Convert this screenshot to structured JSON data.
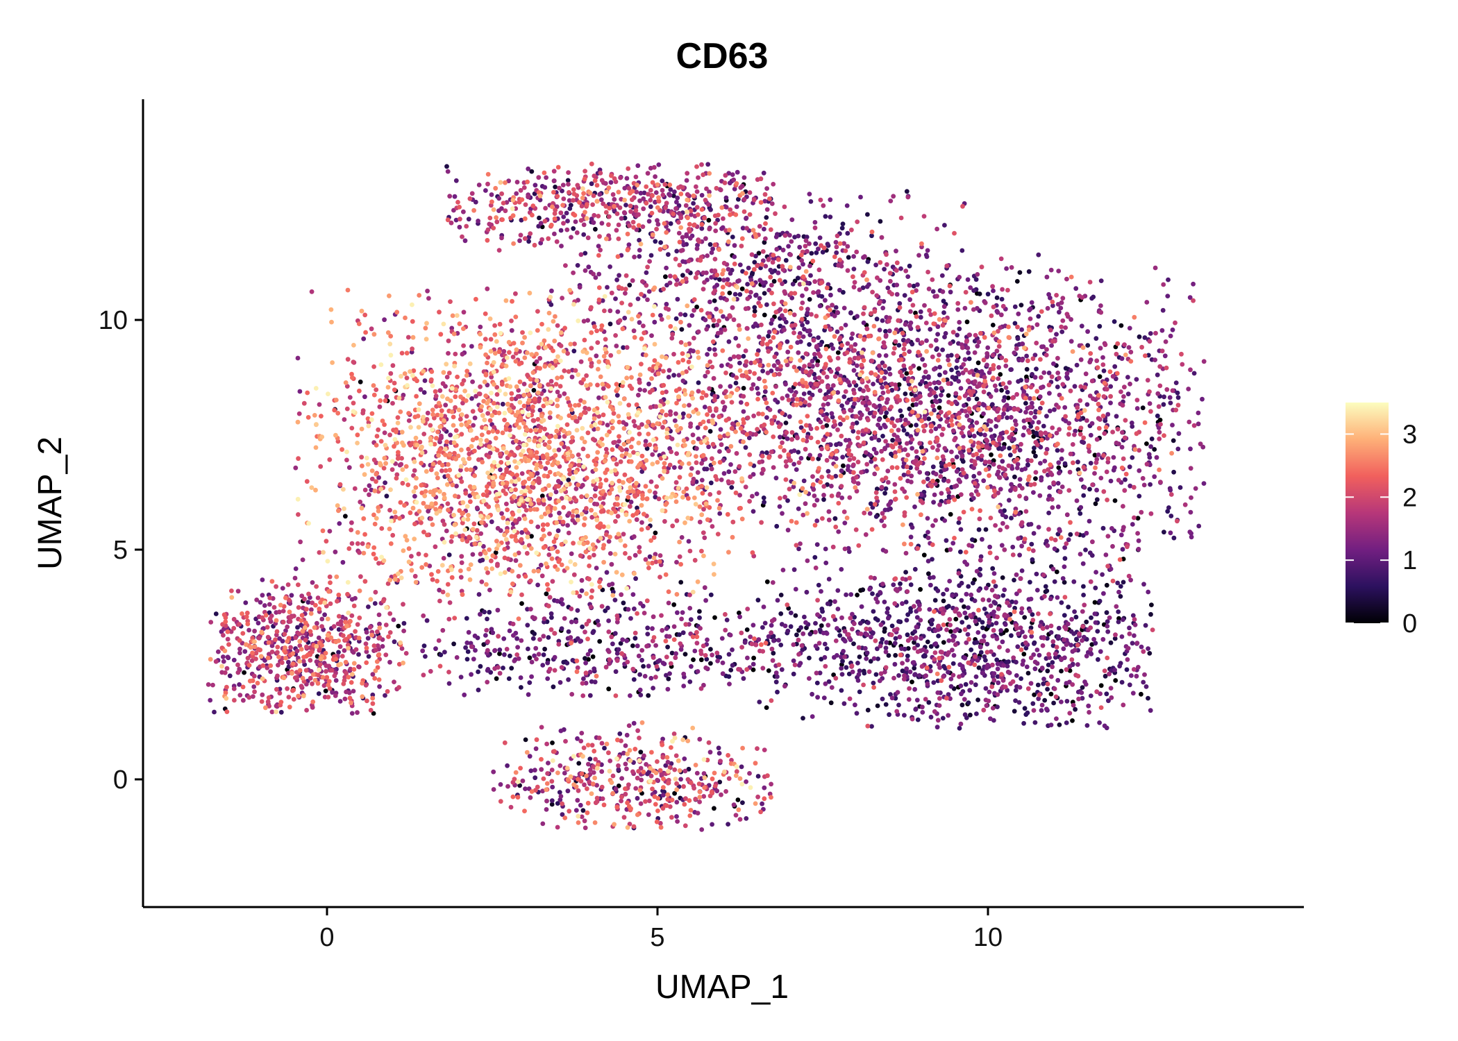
{
  "chart_data": {
    "type": "scatter",
    "title": "CD63",
    "xlabel": "UMAP_1",
    "ylabel": "UMAP_2",
    "xlim": [
      -2.8,
      14.8
    ],
    "ylim": [
      -2.8,
      14.8
    ],
    "x_ticks": [
      0,
      5,
      10
    ],
    "x_tick_labels": [
      "0",
      "5",
      "10"
    ],
    "y_ticks": [
      0,
      5,
      10
    ],
    "y_tick_labels": [
      "0",
      "5",
      "10"
    ],
    "grid": false,
    "color_scale": {
      "name": "magma",
      "min": 0,
      "max": 3.5,
      "ticks": [
        0,
        1,
        2,
        3
      ],
      "tick_labels": [
        "0",
        "1",
        "2",
        "3"
      ],
      "stops": [
        "#000004",
        "#2c115f",
        "#721f81",
        "#b73779",
        "#f1605d",
        "#feb078",
        "#fcfdbf"
      ]
    },
    "legend_position": "right",
    "clusters": [
      {
        "name": "left-lobe",
        "cx": 3.0,
        "cy": 7.0,
        "sx": 1.6,
        "sy": 1.7,
        "n": 2200,
        "mean": 2.3,
        "sd": 0.6,
        "xmin": -0.5,
        "xmax": 6.5,
        "ymin": 4.0,
        "ymax": 10.8
      },
      {
        "name": "upper-arc",
        "cx": 4.2,
        "cy": 12.6,
        "sx": 1.6,
        "sy": 0.5,
        "n": 500,
        "mean": 1.7,
        "sd": 0.6,
        "xmin": 1.8,
        "xmax": 6.8,
        "ymin": 11.5,
        "ymax": 13.4
      },
      {
        "name": "top-middle",
        "cx": 6.5,
        "cy": 11.2,
        "sx": 1.6,
        "sy": 0.9,
        "n": 500,
        "mean": 1.4,
        "sd": 0.6,
        "xmin": 3.0,
        "xmax": 10.0,
        "ymin": 9.5,
        "ymax": 12.8
      },
      {
        "name": "center",
        "cx": 7.4,
        "cy": 8.3,
        "sx": 1.6,
        "sy": 1.6,
        "n": 1200,
        "mean": 1.6,
        "sd": 0.6,
        "xmin": 4.0,
        "xmax": 11.0,
        "ymin": 5.0,
        "ymax": 11.5
      },
      {
        "name": "right-upper",
        "cx": 10.2,
        "cy": 7.8,
        "sx": 1.7,
        "sy": 1.7,
        "n": 1500,
        "mean": 1.3,
        "sd": 0.6,
        "xmin": 7.0,
        "xmax": 13.3,
        "ymin": 4.8,
        "ymax": 11.2
      },
      {
        "name": "right-lower",
        "cx": 9.8,
        "cy": 2.9,
        "sx": 1.6,
        "sy": 1.0,
        "n": 1100,
        "mean": 1.0,
        "sd": 0.5,
        "xmin": 6.5,
        "xmax": 12.5,
        "ymin": 1.1,
        "ymax": 5.2
      },
      {
        "name": "left-island",
        "cx": -0.3,
        "cy": 2.8,
        "sx": 0.95,
        "sy": 0.75,
        "n": 650,
        "mean": 1.8,
        "sd": 0.6,
        "xmin": -1.8,
        "xmax": 1.2,
        "ymin": 1.4,
        "ymax": 4.4
      },
      {
        "name": "middle-bands",
        "cx": 4.5,
        "cy": 2.9,
        "sx": 1.9,
        "sy": 0.65,
        "n": 500,
        "mean": 1.1,
        "sd": 0.6,
        "xmin": 1.4,
        "xmax": 8.0,
        "ymin": 1.8,
        "ymax": 4.3
      },
      {
        "name": "bottom-island",
        "cx": 4.6,
        "cy": 0.0,
        "sx": 1.1,
        "sy": 0.5,
        "n": 450,
        "mean": 1.8,
        "sd": 0.7,
        "xmin": 2.5,
        "xmax": 6.8,
        "ymin": -1.1,
        "ymax": 1.3
      }
    ]
  }
}
